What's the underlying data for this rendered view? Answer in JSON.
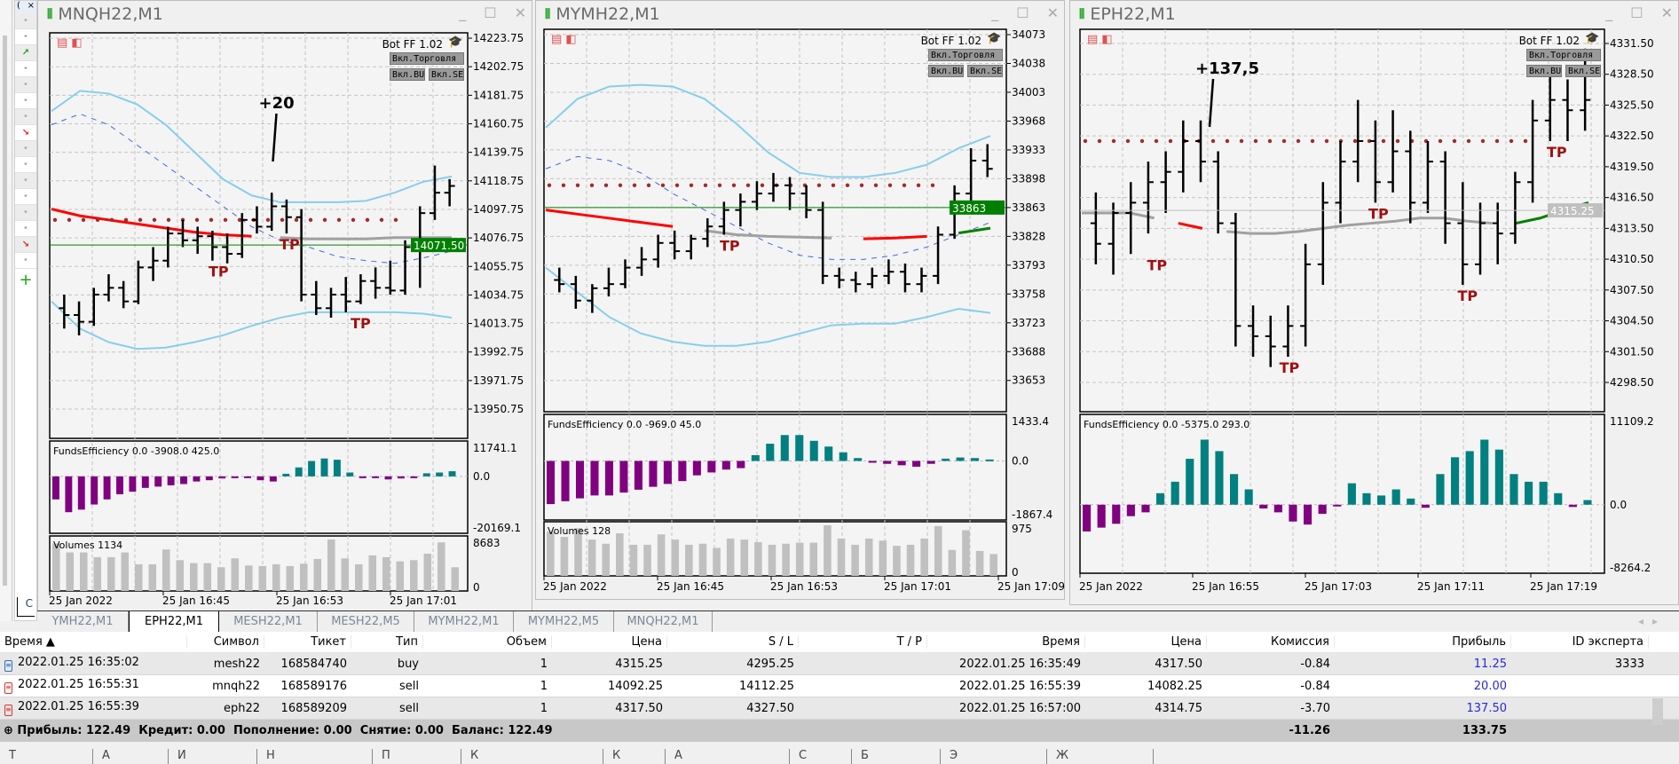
{
  "left_panel": {
    "header": "(",
    "close": "×",
    "up_arrow": "↗",
    "down_arrow": "↘",
    "dot": "•",
    "add": "+",
    "tab": "C"
  },
  "bot": {
    "name": "Bot FF 1.02",
    "trade_btn": "Вкл.Торговля",
    "buy_btn": "Вкл.BUY",
    "sell_btn": "Вкл.SELL"
  },
  "windows": [
    {
      "title": "MNQH22,M1",
      "price_ticks": [
        "14223.75",
        "14202.75",
        "14181.75",
        "14160.75",
        "14139.75",
        "14118.75",
        "14097.75",
        "14076.75",
        "14055.75",
        "14034.75",
        "14013.75",
        "13992.75",
        "13971.75",
        "13950.75"
      ],
      "tick_values": [
        14223.75,
        14202.75,
        14181.75,
        14160.75,
        14139.75,
        14118.75,
        14097.75,
        14076.75,
        14055.75,
        14034.75,
        14013.75,
        13992.75,
        13971.75,
        13950.75
      ],
      "current_price": "14071.50",
      "current_value": 14071.5,
      "current_color": "#008000",
      "annotation": "+20",
      "tp": [
        "TP",
        "TP",
        "TP"
      ],
      "bars": [
        [
          14025,
          14035,
          14010,
          14020
        ],
        [
          14020,
          14030,
          14005,
          14015
        ],
        [
          14015,
          14040,
          14012,
          14035
        ],
        [
          14035,
          14050,
          14030,
          14040
        ],
        [
          14040,
          14045,
          14025,
          14030
        ],
        [
          14030,
          14060,
          14028,
          14055
        ],
        [
          14055,
          14070,
          14045,
          14060
        ],
        [
          14060,
          14085,
          14055,
          14080
        ],
        [
          14080,
          14090,
          14070,
          14075
        ],
        [
          14075,
          14085,
          14065,
          14078
        ],
        [
          14078,
          14082,
          14060,
          14070
        ],
        [
          14070,
          14080,
          14058,
          14065
        ],
        [
          14065,
          14095,
          14062,
          14090
        ],
        [
          14090,
          14100,
          14080,
          14085
        ],
        [
          14085,
          14110,
          14082,
          14100
        ],
        [
          14100,
          14105,
          14080,
          14092
        ],
        [
          14092,
          14098,
          14030,
          14035
        ],
        [
          14035,
          14045,
          14020,
          14025
        ],
        [
          14025,
          14040,
          14018,
          14035
        ],
        [
          14035,
          14048,
          14022,
          14030
        ],
        [
          14030,
          14050,
          14028,
          14045
        ],
        [
          14045,
          14055,
          14032,
          14040
        ],
        [
          14040,
          14060,
          14035,
          14038
        ],
        [
          14038,
          14075,
          14035,
          14070
        ],
        [
          14070,
          14100,
          14040,
          14095
        ],
        [
          14095,
          14130,
          14090,
          14110
        ],
        [
          14110,
          14120,
          14100,
          14115
        ]
      ],
      "bb_upper": [
        14170,
        14185,
        14183,
        14175,
        14160,
        14140,
        14120,
        14108,
        14103,
        14103,
        14103,
        14104,
        14110,
        14118,
        14122
      ],
      "bb_mid": [
        14160,
        14168,
        14160,
        14145,
        14130,
        14115,
        14100,
        14085,
        14075,
        14070,
        14063,
        14060,
        14058,
        14062,
        14067
      ],
      "bb_lower": [
        14030,
        14010,
        14000,
        13995,
        13996,
        14000,
        14005,
        14012,
        14018,
        14022,
        14022,
        14022,
        14022,
        14021,
        14018
      ],
      "ma": [
        14098,
        14093,
        14090,
        14087,
        14084,
        14081,
        14079,
        14078,
        14077,
        14076,
        14076,
        14076,
        14077,
        14077,
        14077
      ],
      "ma_segments": [
        [
          0,
          0.55,
          "#ff0000"
        ],
        [
          0.55,
          1,
          "#a0a0a0"
        ]
      ],
      "dots_level": 14090,
      "funds_label": "FundsEfficiency 0.0 -3908.0 425.0",
      "funds_ticks": [
        "11741.1",
        "0.0",
        "-20169.1"
      ],
      "funds_range": [
        -20169.1,
        11741.1
      ],
      "funds": [
        -9000,
        -14000,
        -13000,
        -11000,
        -9000,
        -7000,
        -6000,
        -4500,
        -4000,
        -3500,
        -3000,
        -2000,
        -1500,
        -800,
        -500,
        -300,
        -1500,
        -2000,
        1000,
        3500,
        6000,
        7000,
        6500,
        1500,
        -300,
        -500,
        -1200,
        -800,
        -500,
        1200,
        1500,
        2000
      ],
      "vol_label": "Volumes 1134",
      "vol_ticks": [
        "8683",
        "0"
      ],
      "vol_max": 8683,
      "volumes": [
        8000,
        6500,
        6500,
        5700,
        5700,
        6500,
        4500,
        4500,
        7000,
        5200,
        4700,
        4700,
        4000,
        5500,
        4300,
        4200,
        4500,
        4200,
        4600,
        5400,
        8683,
        5500,
        4500,
        6000,
        5700,
        5000,
        5200,
        6300,
        8200,
        4000
      ],
      "time_labels": [
        "25 Jan 2022",
        "25 Jan 16:45",
        "25 Jan 16:53",
        "25 Jan 17:01"
      ]
    },
    {
      "title": "MYMH22,M1",
      "price_ticks": [
        "34073",
        "34038",
        "34003",
        "33968",
        "33933",
        "33898",
        "33863",
        "33828",
        "33793",
        "33758",
        "33723",
        "33688",
        "33653"
      ],
      "tick_values": [
        34073,
        34038,
        34003,
        33968,
        33933,
        33898,
        33863,
        33828,
        33793,
        33758,
        33723,
        33688,
        33653
      ],
      "current_price": "33863",
      "current_value": 33863,
      "current_color": "#008000",
      "tp": [
        "TP"
      ],
      "bars": [
        [
          33775,
          33790,
          33760,
          33770
        ],
        [
          33770,
          33780,
          33740,
          33750
        ],
        [
          33750,
          33770,
          33735,
          33765
        ],
        [
          33765,
          33790,
          33755,
          33770
        ],
        [
          33770,
          33800,
          33765,
          33790
        ],
        [
          33790,
          33815,
          33780,
          33800
        ],
        [
          33800,
          33830,
          33790,
          33820
        ],
        [
          33820,
          33835,
          33800,
          33810
        ],
        [
          33810,
          33830,
          33800,
          33825
        ],
        [
          33825,
          33850,
          33815,
          33840
        ],
        [
          33840,
          33870,
          33830,
          33860
        ],
        [
          33860,
          33880,
          33840,
          33870
        ],
        [
          33870,
          33895,
          33860,
          33880
        ],
        [
          33880,
          33905,
          33870,
          33890
        ],
        [
          33890,
          33900,
          33860,
          33880
        ],
        [
          33880,
          33890,
          33850,
          33860
        ],
        [
          33860,
          33870,
          33770,
          33780
        ],
        [
          33780,
          33790,
          33765,
          33775
        ],
        [
          33775,
          33785,
          33760,
          33770
        ],
        [
          33770,
          33790,
          33765,
          33780
        ],
        [
          33780,
          33800,
          33770,
          33785
        ],
        [
          33785,
          33795,
          33760,
          33770
        ],
        [
          33770,
          33790,
          33760,
          33780
        ],
        [
          33780,
          33840,
          33770,
          33830
        ],
        [
          33830,
          33890,
          33825,
          33880
        ],
        [
          33880,
          33935,
          33870,
          33920
        ],
        [
          33920,
          33940,
          33900,
          33910
        ]
      ],
      "bb_upper": [
        33960,
        33995,
        34010,
        34012,
        34010,
        33995,
        33965,
        33930,
        33905,
        33900,
        33900,
        33905,
        33915,
        33935,
        33950
      ],
      "bb_mid": [
        33910,
        33925,
        33920,
        33905,
        33880,
        33860,
        33840,
        33820,
        33805,
        33800,
        33800,
        33805,
        33815,
        33830,
        33845
      ],
      "bb_lower": [
        33790,
        33760,
        33730,
        33710,
        33700,
        33695,
        33695,
        33700,
        33710,
        33720,
        33722,
        33722,
        33730,
        33740,
        33735
      ],
      "ma": [
        33860,
        33855,
        33850,
        33845,
        33840,
        33835,
        33830,
        33828,
        33827,
        33826,
        33825,
        33826,
        33828,
        33832,
        33838
      ],
      "ma_segments": [
        [
          0,
          0.35,
          "#ff0000"
        ],
        [
          0.35,
          0.7,
          "#a0a0a0"
        ],
        [
          0.7,
          0.88,
          "#ff0000"
        ],
        [
          0.88,
          1,
          "#008000"
        ]
      ],
      "dots_level": 33890,
      "funds_label": "FundsEfficiency 0.0 -969.0 45.0",
      "funds_ticks": [
        "1433.4",
        "0.0",
        "-1867.4"
      ],
      "funds_range": [
        -1867.4,
        1433.4
      ],
      "funds": [
        -1500,
        -1400,
        -1300,
        -1200,
        -1200,
        -1100,
        -1000,
        -900,
        -800,
        -700,
        -500,
        -400,
        -300,
        -250,
        200,
        600,
        900,
        900,
        700,
        500,
        300,
        100,
        -50,
        -100,
        -150,
        -200,
        -100,
        80,
        120,
        100,
        50
      ],
      "vol_label": "Volumes 128",
      "vol_ticks": [
        "975",
        "0"
      ],
      "vol_max": 975,
      "volumes": [
        850,
        750,
        920,
        700,
        620,
        820,
        600,
        600,
        800,
        700,
        600,
        620,
        540,
        720,
        700,
        650,
        600,
        620,
        640,
        640,
        975,
        720,
        600,
        720,
        680,
        580,
        600,
        720,
        960,
        500,
        880,
        480,
        420
      ],
      "time_labels": [
        "25 Jan 2022",
        "25 Jan 16:45",
        "25 Jan 16:53",
        "25 Jan 17:01",
        "25 Jan 17:09"
      ]
    },
    {
      "title": "EPH22,M1",
      "price_ticks": [
        "4331.50",
        "4328.50",
        "4325.50",
        "4322.50",
        "4319.50",
        "4316.50",
        "4313.50",
        "4310.50",
        "4307.50",
        "4304.50",
        "4301.50",
        "4298.50"
      ],
      "tick_values": [
        4331.5,
        4328.5,
        4325.5,
        4322.5,
        4319.5,
        4316.5,
        4313.5,
        4310.5,
        4307.5,
        4304.5,
        4301.5,
        4298.5
      ],
      "current_price": "4315.25",
      "current_value": 4315.25,
      "current_color": "#c0c0c0",
      "annotation": "+137,5",
      "tp": [
        "TP",
        "TP",
        "TP",
        "TP",
        "TP"
      ],
      "bars": [
        [
          4314,
          4317,
          4310,
          4312
        ],
        [
          4312,
          4316,
          4309,
          4315
        ],
        [
          4315,
          4318,
          4311,
          4316
        ],
        [
          4316,
          4320,
          4313,
          4318
        ],
        [
          4318,
          4321,
          4315,
          4319
        ],
        [
          4319,
          4324,
          4317,
          4322
        ],
        [
          4322,
          4324,
          4318,
          4320
        ],
        [
          4320,
          4321,
          4313,
          4314
        ],
        [
          4314,
          4315,
          4302,
          4304
        ],
        [
          4304,
          4306,
          4301,
          4303
        ],
        [
          4303,
          4305,
          4300,
          4302
        ],
        [
          4302,
          4306,
          4301,
          4304
        ],
        [
          4304,
          4312,
          4302,
          4310
        ],
        [
          4310,
          4318,
          4308,
          4316
        ],
        [
          4316,
          4322,
          4314,
          4320
        ],
        [
          4320,
          4326,
          4318,
          4322
        ],
        [
          4322,
          4324,
          4316,
          4318
        ],
        [
          4318,
          4325,
          4317,
          4321
        ],
        [
          4321,
          4323,
          4314,
          4316
        ],
        [
          4316,
          4322,
          4315,
          4320
        ],
        [
          4320,
          4321,
          4312,
          4314
        ],
        [
          4314,
          4318,
          4308,
          4310
        ],
        [
          4310,
          4316,
          4309,
          4314
        ],
        [
          4314,
          4316,
          4310,
          4313
        ],
        [
          4313,
          4319,
          4312,
          4318
        ],
        [
          4318,
          4326,
          4316,
          4324
        ],
        [
          4324,
          4329,
          4322,
          4326
        ],
        [
          4326,
          4328,
          4322,
          4325
        ],
        [
          4325,
          4331,
          4323,
          4326
        ]
      ],
      "ma": [
        4315,
        4315,
        4315,
        4314.5,
        4314,
        4313.5,
        4313.2,
        4313,
        4313,
        4313.2,
        4313.5,
        4313.8,
        4314,
        4314.2,
        4314.5,
        4314.5,
        4314.2,
        4314,
        4314,
        4314.5,
        4315.3,
        4316
      ],
      "ma_segments": [
        [
          0,
          0.18,
          "#a0a0a0"
        ],
        [
          0.18,
          0.28,
          "#ff0000"
        ],
        [
          0.28,
          0.82,
          "#a0a0a0"
        ],
        [
          0.82,
          1,
          "#008000"
        ]
      ],
      "dots_level": 4322,
      "funds_label": "FundsEfficiency 0.0 -5375.0 293.0",
      "funds_ticks": [
        "11109.2",
        "0.0",
        "-8264.2"
      ],
      "funds_range": [
        -8264.2,
        11109.2
      ],
      "funds": [
        -3500,
        -3000,
        -2500,
        -1500,
        -1000,
        1500,
        3000,
        6000,
        8500,
        7000,
        4000,
        2000,
        -500,
        -1000,
        -2200,
        -2600,
        -1200,
        -100,
        2800,
        1500,
        1200,
        2000,
        800,
        -400,
        4000,
        6200,
        7000,
        8500,
        7200,
        4000,
        3000,
        3000,
        1500,
        -300,
        600
      ],
      "time_labels": [
        "25 Jan 2022",
        "25 Jan 16:55",
        "25 Jan 17:03",
        "25 Jan 17:11",
        "25 Jan 17:19"
      ]
    }
  ],
  "tabs": [
    "YMH22,M1",
    "EPH22,M1",
    "MESH22,M1",
    "MESH22,M5",
    "MYMH22,M1",
    "MYMH22,M5",
    "MNQH22,M1"
  ],
  "active_tab": 1,
  "table": {
    "headers": [
      "Время ▲",
      "Символ",
      "Тикет",
      "Тип",
      "Объем",
      "Цена",
      "S / L",
      "T / P",
      "Время",
      "Цена",
      "Комиссия",
      "Прибыль",
      "ID эксперта"
    ],
    "rows": [
      [
        "2022.01.25 16:35:02",
        "mesh22",
        "168584740",
        "buy",
        "1",
        "4315.25",
        "4295.25",
        "",
        "2022.01.25 16:35:49",
        "4317.50",
        "-0.84",
        "11.25",
        "3333"
      ],
      [
        "2022.01.25 16:55:31",
        "mnqh22",
        "168589176",
        "sell",
        "1",
        "14092.25",
        "14112.25",
        "",
        "2022.01.25 16:55:39",
        "14082.25",
        "-0.84",
        "20.00",
        ""
      ],
      [
        "2022.01.25 16:55:39",
        "eph22",
        "168589209",
        "sell",
        "1",
        "4317.50",
        "4327.50",
        "",
        "2022.01.25 16:57:00",
        "4314.75",
        "-3.70",
        "137.50",
        ""
      ]
    ],
    "summary": "Прибыль: 122.49  Кредит: 0.00  Пополнение: 0.00  Снятие: 0.00  Баланс: 122.49",
    "total_commission": "-11.26",
    "total_profit": "133.75"
  },
  "bottom_tabs": [
    "Т",
    "А",
    "И",
    "Н",
    "П",
    "К",
    "К",
    "А",
    "С",
    "Б",
    "Э",
    "Ж"
  ]
}
